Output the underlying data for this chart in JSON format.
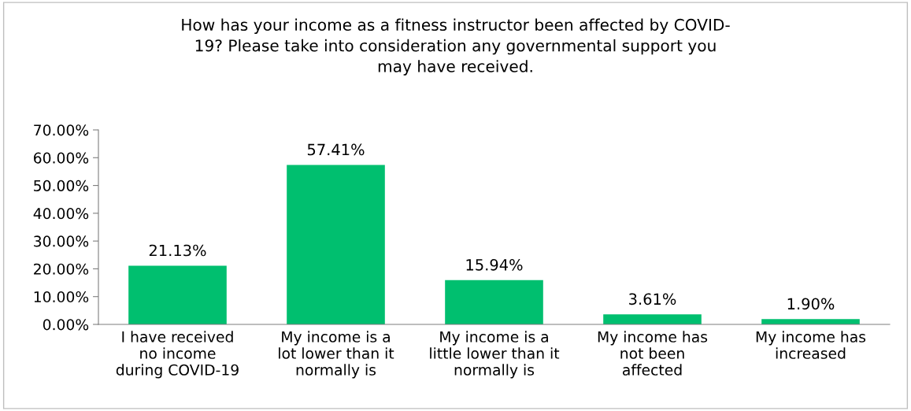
{
  "chart_data": {
    "type": "bar",
    "title": "How has your income as a fitness instructor been affected by COVID-\n19? Please take into consideration any governmental support you\nmay have received.",
    "categories": [
      "I have received\nno income\nduring COVID-19",
      "My income is a\nlot lower than it\nnormally is",
      "My income is a\nlittle lower than it\nnormally is",
      "My income has\nnot been\naffected",
      "My income has\nincreased"
    ],
    "values": [
      21.13,
      57.41,
      15.94,
      3.61,
      1.9
    ],
    "value_labels": [
      "21.13%",
      "57.41%",
      "15.94%",
      "3.61%",
      "1.90%"
    ],
    "color": "#00bf6f",
    "ylim": [
      0,
      70
    ],
    "yticks": [
      {
        "value": 0,
        "label": "0.00%"
      },
      {
        "value": 10,
        "label": "10.00%"
      },
      {
        "value": 20,
        "label": "20.00%"
      },
      {
        "value": 30,
        "label": "30.00%"
      },
      {
        "value": 40,
        "label": "40.00%"
      },
      {
        "value": 50,
        "label": "50.00%"
      },
      {
        "value": 60,
        "label": "60.00%"
      },
      {
        "value": 70,
        "label": "70.00%"
      }
    ],
    "grid": false
  }
}
